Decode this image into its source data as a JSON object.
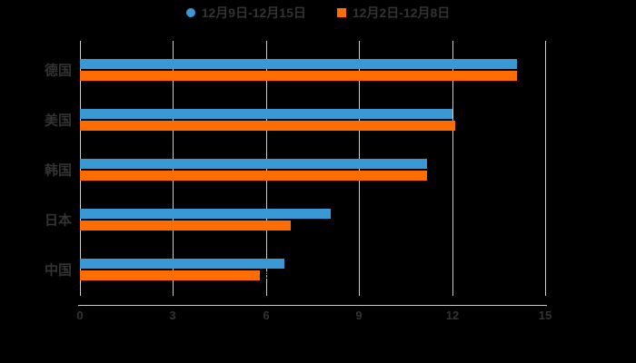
{
  "chart_data": {
    "type": "bar",
    "orientation": "horizontal",
    "title": "",
    "xlabel": "",
    "ylabel": "",
    "categories": [
      "德国",
      "美国",
      "韩国",
      "日本",
      "中国"
    ],
    "series": [
      {
        "name": "12月9日-12月15日",
        "color": "#3899d4",
        "marker": "circle",
        "values": [
          14.1,
          12.0,
          11.2,
          8.1,
          6.6
        ]
      },
      {
        "name": "12月2日-12月8日",
        "color": "#ff6d00",
        "marker": "square",
        "values": [
          14.1,
          12.1,
          11.2,
          6.8,
          5.8
        ]
      }
    ],
    "xlim": [
      0,
      15
    ],
    "xticks": [
      0,
      3,
      6,
      9,
      12,
      15
    ],
    "grid": "vertical-lines",
    "gridline_color": "#cccccc",
    "axis_line_color": "#cccccc",
    "text_color": "#333333",
    "background_color": "#000000",
    "legend_position": "top-center"
  }
}
